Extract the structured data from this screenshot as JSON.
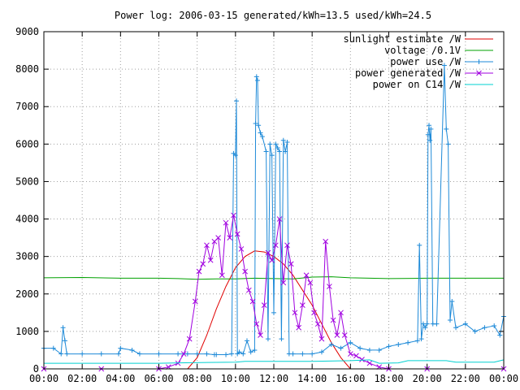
{
  "chart_data": {
    "type": "line",
    "title": "Power log: 2006-03-15 generated/kWh=13.5 used/kWh=24.5",
    "xlabel": "",
    "ylabel": "",
    "xlim": [
      0,
      24
    ],
    "ylim": [
      0,
      9000
    ],
    "x_ticks": [
      "00:00",
      "02:00",
      "04:00",
      "06:00",
      "08:00",
      "10:00",
      "12:00",
      "14:00",
      "16:00",
      "18:00",
      "20:00",
      "22:00",
      "00:00"
    ],
    "y_ticks": [
      0,
      1000,
      2000,
      3000,
      4000,
      5000,
      6000,
      7000,
      8000,
      9000
    ],
    "grid": true,
    "legend_position": "top-right",
    "series": [
      {
        "name": "sunlight estimate /W",
        "color": "#e00000",
        "style": "line",
        "x": [
          7.5,
          8.0,
          8.5,
          9.0,
          9.5,
          10.0,
          10.5,
          11.0,
          11.5,
          12.0,
          12.5,
          13.0,
          13.5,
          14.0,
          14.5,
          15.0,
          15.5,
          16.0
        ],
        "y": [
          0,
          300,
          900,
          1600,
          2200,
          2700,
          3000,
          3150,
          3120,
          3000,
          2800,
          2500,
          2100,
          1700,
          1200,
          700,
          300,
          0
        ]
      },
      {
        "name": "voltage /0.1V",
        "color": "#00a000",
        "style": "line",
        "x": [
          0,
          2,
          4,
          6,
          7,
          8,
          9,
          10,
          11,
          12,
          13,
          14,
          15,
          16,
          17,
          18,
          20,
          22,
          24
        ],
        "y": [
          2430,
          2440,
          2420,
          2420,
          2410,
          2390,
          2400,
          2400,
          2420,
          2410,
          2400,
          2450,
          2460,
          2430,
          2420,
          2410,
          2420,
          2420,
          2420
        ]
      },
      {
        "name": "power use /W",
        "color": "#1e8ad8",
        "style": "linespoints",
        "x": [
          0.0,
          0.5,
          0.9,
          1.0,
          1.1,
          1.2,
          2.0,
          3.0,
          3.9,
          4.0,
          4.6,
          5.0,
          6.0,
          7.0,
          7.5,
          8.0,
          8.5,
          8.9,
          9.0,
          9.5,
          9.8,
          9.9,
          10.0,
          10.05,
          10.1,
          10.2,
          10.4,
          10.6,
          10.8,
          11.0,
          11.05,
          11.1,
          11.15,
          11.2,
          11.3,
          11.4,
          11.6,
          11.7,
          11.8,
          11.9,
          12.0,
          12.1,
          12.2,
          12.3,
          12.4,
          12.5,
          12.6,
          12.7,
          12.8,
          13.0,
          13.5,
          14.0,
          14.5,
          15.0,
          15.5,
          16.0,
          16.5,
          17.0,
          17.5,
          18.0,
          18.5,
          19.0,
          19.5,
          19.6,
          19.7,
          19.8,
          19.9,
          20.0,
          20.05,
          20.1,
          20.15,
          20.2,
          20.3,
          20.5,
          20.9,
          21.0,
          21.1,
          21.2,
          21.3,
          21.5,
          22.0,
          22.5,
          23.0,
          23.5,
          23.8,
          24.0
        ],
        "y": [
          550,
          550,
          400,
          1100,
          750,
          400,
          400,
          400,
          400,
          550,
          500,
          400,
          400,
          400,
          400,
          400,
          400,
          380,
          380,
          380,
          400,
          5750,
          5700,
          7150,
          400,
          450,
          400,
          750,
          450,
          500,
          6550,
          7800,
          7700,
          6500,
          6300,
          6200,
          5800,
          800,
          6000,
          5700,
          1500,
          6000,
          5900,
          5800,
          800,
          6100,
          5800,
          6050,
          400,
          400,
          400,
          400,
          450,
          650,
          550,
          700,
          550,
          500,
          500,
          600,
          650,
          700,
          750,
          3300,
          800,
          1200,
          1100,
          1200,
          6250,
          6500,
          6100,
          6400,
          1200,
          1200,
          8100,
          6400,
          6000,
          1300,
          1800,
          1100,
          1200,
          1000,
          1100,
          1150,
          900,
          1400
        ]
      },
      {
        "name": "power generated /W",
        "color": "#a000e0",
        "style": "linespoints",
        "x": [
          0.0,
          3.0,
          6.0,
          6.5,
          7.0,
          7.3,
          7.6,
          7.9,
          8.1,
          8.3,
          8.5,
          8.7,
          8.9,
          9.1,
          9.3,
          9.5,
          9.7,
          9.9,
          10.1,
          10.3,
          10.5,
          10.7,
          10.9,
          11.1,
          11.3,
          11.5,
          11.7,
          11.9,
          12.1,
          12.3,
          12.5,
          12.7,
          12.9,
          13.1,
          13.3,
          13.5,
          13.7,
          13.9,
          14.1,
          14.3,
          14.5,
          14.7,
          14.9,
          15.1,
          15.3,
          15.5,
          15.7,
          16.0,
          16.3,
          16.6,
          17.0,
          17.5,
          18.0,
          20.0,
          24.0
        ],
        "y": [
          0,
          0,
          0,
          50,
          150,
          400,
          800,
          1800,
          2600,
          2800,
          3300,
          2900,
          3400,
          3500,
          2500,
          3900,
          3500,
          4100,
          3600,
          3200,
          2600,
          2100,
          1800,
          1200,
          900,
          1700,
          3100,
          2900,
          3300,
          4000,
          2300,
          3300,
          2800,
          1500,
          1100,
          1700,
          2500,
          2300,
          1500,
          1200,
          800,
          3400,
          2200,
          1300,
          900,
          1500,
          900,
          400,
          350,
          250,
          150,
          50,
          0,
          0,
          0
        ]
      },
      {
        "name": "power on C14 /W",
        "color": "#00d0d0",
        "style": "line",
        "x": [
          0,
          6,
          7,
          10,
          10.5,
          14,
          16,
          17,
          17.5,
          18.5,
          19,
          21,
          21.5,
          23.5,
          24
        ],
        "y": [
          150,
          150,
          160,
          180,
          200,
          200,
          220,
          240,
          150,
          160,
          220,
          220,
          180,
          180,
          240
        ]
      }
    ]
  }
}
